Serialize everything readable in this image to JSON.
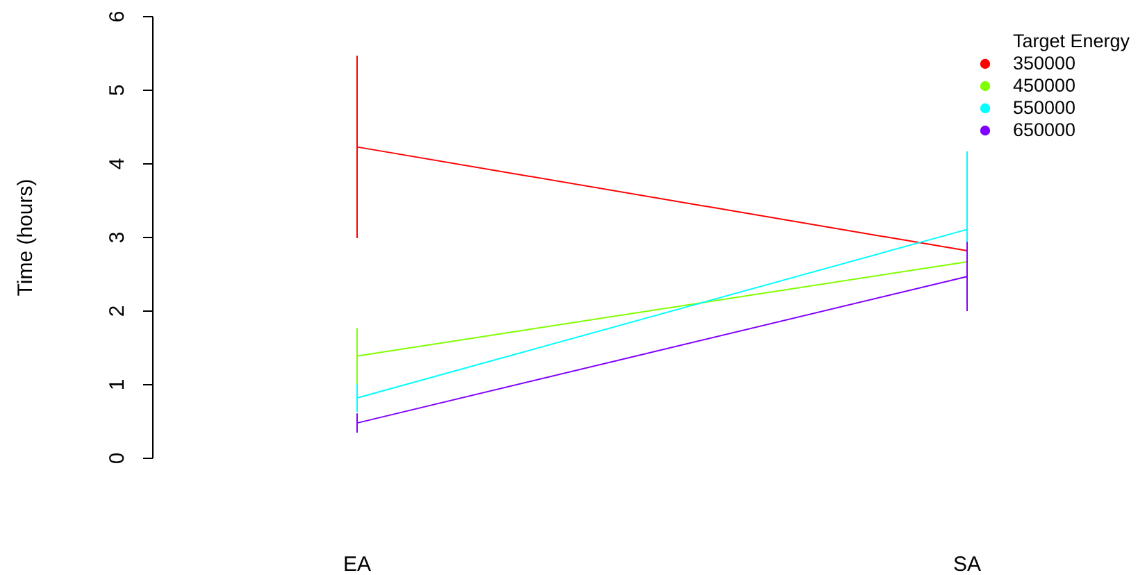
{
  "chart_data": {
    "type": "line",
    "ylabel": "Time (hours)",
    "legend_title": "Target Energy",
    "legend": "top right",
    "categories": [
      "EA",
      "SA"
    ],
    "ylim": [
      0,
      6
    ],
    "yticks": [
      0,
      1,
      2,
      3,
      4,
      5,
      6
    ],
    "series": [
      {
        "name": "350000",
        "color": "#ff0000",
        "values": [
          4.23,
          2.82
        ],
        "errors": [
          1.24,
          null
        ]
      },
      {
        "name": "450000",
        "color": "#80ff00",
        "values": [
          1.39,
          2.67
        ],
        "errors": [
          0.38,
          null
        ]
      },
      {
        "name": "550000",
        "color": "#00ffff",
        "values": [
          0.82,
          3.11
        ],
        "errors": [
          0.19,
          1.06
        ]
      },
      {
        "name": "650000",
        "color": "#8000ff",
        "values": [
          0.48,
          2.47
        ],
        "errors": [
          0.13,
          0.47
        ]
      }
    ]
  }
}
